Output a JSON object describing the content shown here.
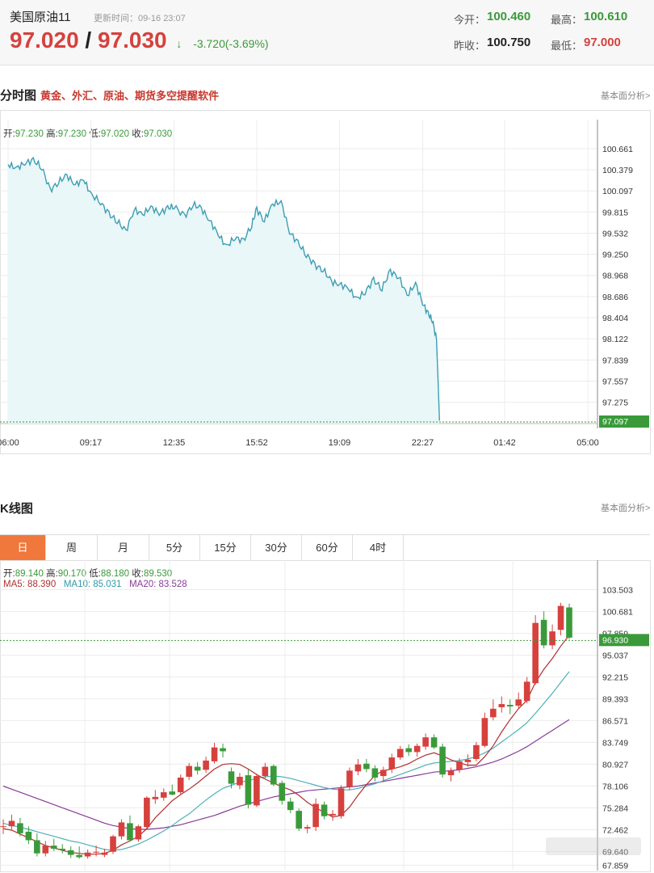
{
  "header": {
    "title": "美国原油11",
    "update_time": "更新时间：09-16 23:07",
    "bid": "97.020",
    "separator": "/",
    "ask": "97.030",
    "arrow": "↓",
    "change": "-3.720(-3.69%)",
    "open_label": "今开：",
    "open_value": "100.460",
    "high_label": "最高：",
    "high_value": "100.610",
    "prev_close_label": "昨收：",
    "prev_close_value": "100.750",
    "low_label": "最低：",
    "low_value": "97.000"
  },
  "intraday": {
    "section_title": "分时图",
    "section_subtitle": "黄金、外汇、原油、期货多空提醒软件",
    "link": "基本面分析>",
    "ohlc": {
      "open_label": "开:",
      "open": "97.230",
      "high_label": "高:",
      "high": "97.230",
      "low_label": "低:",
      "low": "97.020",
      "close_label": "收:",
      "close": "97.030"
    },
    "price_tag": "97.097"
  },
  "kline": {
    "section_title": "K线图",
    "link": "基本面分析>",
    "tabs": [
      "日",
      "周",
      "月",
      "5分",
      "15分",
      "30分",
      "60分",
      "4时"
    ],
    "active_tab": "日",
    "ohlc": {
      "open_label": "开:",
      "open": "89.140",
      "high_label": "高:",
      "high": "90.170",
      "low_label": "低:",
      "low": "88.180",
      "close_label": "收:",
      "close": "89.530"
    },
    "ma": {
      "ma5_label": "MA5:",
      "ma5": "88.390",
      "ma10_label": "MA10:",
      "ma10": "85.031",
      "ma20_label": "MA20:",
      "ma20": "83.528"
    },
    "price_tag": "96.930"
  },
  "colors": {
    "up": "#d6413d",
    "down": "#3a9a3a",
    "line": "#3d9db2",
    "fill": "#e9f7f8",
    "ma5": "#b03030",
    "ma10": "#4fb0b8",
    "ma20": "#8a3a9a",
    "tab_active": "#f0783c"
  },
  "chart_data": [
    {
      "type": "line",
      "title": "分时图",
      "xlabel": "",
      "ylabel": "",
      "x_ticks": [
        "06:00",
        "09:17",
        "12:35",
        "15:52",
        "19:09",
        "22:27",
        "01:42",
        "05:00"
      ],
      "y_ticks": [
        "100.661",
        "100.379",
        "100.097",
        "99.815",
        "99.532",
        "99.250",
        "98.968",
        "98.686",
        "98.404",
        "98.122",
        "97.839",
        "97.557",
        "97.275",
        "97.097"
      ],
      "ylim": [
        96.99,
        100.8
      ],
      "grid": true,
      "series": [
        {
          "x": [
            "06:00",
            "06:20",
            "06:40",
            "07:00",
            "07:20",
            "07:40",
            "08:00",
            "08:20",
            "08:40",
            "09:00",
            "09:17",
            "09:40",
            "10:00",
            "10:20",
            "10:40",
            "11:00",
            "11:20",
            "11:40",
            "12:00",
            "12:20",
            "12:35",
            "13:00",
            "13:20",
            "13:40",
            "14:00",
            "14:20",
            "14:40",
            "15:00",
            "15:20",
            "15:40",
            "15:52",
            "16:10",
            "16:30",
            "16:50",
            "17:10",
            "17:30",
            "17:50",
            "18:10",
            "18:30",
            "18:50",
            "19:09",
            "19:30",
            "19:50",
            "20:10",
            "20:30",
            "20:50",
            "21:10",
            "21:30",
            "21:50",
            "22:10",
            "22:27",
            "22:40",
            "22:50",
            "23:00",
            "23:07"
          ],
          "values": [
            100.45,
            100.4,
            100.47,
            100.5,
            100.42,
            100.1,
            100.22,
            100.3,
            100.18,
            100.25,
            100.05,
            99.95,
            99.78,
            99.7,
            99.55,
            99.85,
            99.78,
            99.88,
            99.8,
            99.86,
            99.9,
            99.75,
            99.92,
            99.86,
            99.7,
            99.52,
            99.35,
            99.48,
            99.42,
            99.65,
            99.85,
            99.7,
            99.92,
            99.95,
            99.55,
            99.4,
            99.25,
            99.1,
            99.05,
            98.88,
            98.85,
            98.8,
            98.65,
            98.75,
            98.9,
            98.8,
            99.02,
            98.95,
            98.7,
            98.86,
            98.6,
            98.45,
            98.38,
            98.1,
            97.03
          ]
        }
      ]
    },
    {
      "type": "candlestick",
      "title": "K线图",
      "xlabel": "",
      "ylabel": "",
      "y_ticks": [
        "103.503",
        "100.681",
        "97.859",
        "95.037",
        "92.215",
        "89.393",
        "86.571",
        "83.749",
        "80.927",
        "78.106",
        "75.284",
        "72.462",
        "69.640",
        "67.859"
      ],
      "ylim": [
        67.8,
        104.7
      ],
      "grid": true,
      "candles_ohlc": [
        [
          72.8,
          73.8,
          71.9,
          72.9
        ],
        [
          72.9,
          74.4,
          72.5,
          73.6
        ],
        [
          73.3,
          74.0,
          71.6,
          72.0
        ],
        [
          72.2,
          72.9,
          70.6,
          71.1
        ],
        [
          71.1,
          72.0,
          69.0,
          69.4
        ],
        [
          69.4,
          71.0,
          69.0,
          70.4
        ],
        [
          70.4,
          71.3,
          69.7,
          70.0
        ],
        [
          70.0,
          70.6,
          69.4,
          69.8
        ],
        [
          69.8,
          70.3,
          68.8,
          69.2
        ],
        [
          69.2,
          70.3,
          68.7,
          68.9
        ],
        [
          69.0,
          69.9,
          68.7,
          69.5
        ],
        [
          69.5,
          70.4,
          69.0,
          69.6
        ],
        [
          69.2,
          70.0,
          68.9,
          69.5
        ],
        [
          69.6,
          71.8,
          69.3,
          71.6
        ],
        [
          71.6,
          73.8,
          71.2,
          73.4
        ],
        [
          73.3,
          74.3,
          70.9,
          71.1
        ],
        [
          71.2,
          73.1,
          70.9,
          72.9
        ],
        [
          72.8,
          76.8,
          72.6,
          76.6
        ],
        [
          76.4,
          77.6,
          75.8,
          76.7
        ],
        [
          76.6,
          77.8,
          76.2,
          77.3
        ],
        [
          77.4,
          78.3,
          76.9,
          77.0
        ],
        [
          77.3,
          79.6,
          77.0,
          79.2
        ],
        [
          79.3,
          81.1,
          78.9,
          80.7
        ],
        [
          80.6,
          81.2,
          79.6,
          80.1
        ],
        [
          80.2,
          81.9,
          79.8,
          81.4
        ],
        [
          81.3,
          83.7,
          81.0,
          83.1
        ],
        [
          83.0,
          83.6,
          81.8,
          82.6
        ],
        [
          80.0,
          80.5,
          77.8,
          78.4
        ],
        [
          78.2,
          79.8,
          77.7,
          79.3
        ],
        [
          79.5,
          80.3,
          75.2,
          75.7
        ],
        [
          75.6,
          79.7,
          75.4,
          79.4
        ],
        [
          79.4,
          81.1,
          79.1,
          80.6
        ],
        [
          80.7,
          80.9,
          78.1,
          78.3
        ],
        [
          78.5,
          78.8,
          75.7,
          76.2
        ],
        [
          76.1,
          76.6,
          74.6,
          75.0
        ],
        [
          74.9,
          75.2,
          72.3,
          72.6
        ],
        [
          72.6,
          73.1,
          72.0,
          72.8
        ],
        [
          72.8,
          76.5,
          72.3,
          75.8
        ],
        [
          75.7,
          76.1,
          73.8,
          74.2
        ],
        [
          74.3,
          75.0,
          73.6,
          74.5
        ],
        [
          74.2,
          78.2,
          73.9,
          77.8
        ],
        [
          78.0,
          80.5,
          77.6,
          80.1
        ],
        [
          80.0,
          81.6,
          79.5,
          80.9
        ],
        [
          81.0,
          81.6,
          79.9,
          80.3
        ],
        [
          80.4,
          80.8,
          78.7,
          79.2
        ],
        [
          79.4,
          80.6,
          78.6,
          80.2
        ],
        [
          80.3,
          82.3,
          79.8,
          81.8
        ],
        [
          81.8,
          83.3,
          81.5,
          82.9
        ],
        [
          83.0,
          83.5,
          82.0,
          82.5
        ],
        [
          82.5,
          83.6,
          81.9,
          83.3
        ],
        [
          83.2,
          84.9,
          82.8,
          84.4
        ],
        [
          84.4,
          84.8,
          82.9,
          83.1
        ],
        [
          83.2,
          83.6,
          79.2,
          79.6
        ],
        [
          79.5,
          80.5,
          78.7,
          80.1
        ],
        [
          80.2,
          81.7,
          79.8,
          81.3
        ],
        [
          81.2,
          82.2,
          80.6,
          81.5
        ],
        [
          81.6,
          83.8,
          81.3,
          83.4
        ],
        [
          83.3,
          87.6,
          83.1,
          86.9
        ],
        [
          87.0,
          89.3,
          86.6,
          88.1
        ],
        [
          88.3,
          89.7,
          87.6,
          88.7
        ],
        [
          88.6,
          89.3,
          87.4,
          88.4
        ],
        [
          88.5,
          90.2,
          88.2,
          89.3
        ],
        [
          89.1,
          92.2,
          88.8,
          91.6
        ],
        [
          91.4,
          100.2,
          91.2,
          99.2
        ],
        [
          99.6,
          100.7,
          95.9,
          96.3
        ],
        [
          96.3,
          99.0,
          95.8,
          98.1
        ],
        [
          98.3,
          101.8,
          97.6,
          101.4
        ],
        [
          101.2,
          101.7,
          97.1,
          97.3
        ]
      ],
      "ma5": [
        72.6,
        72.4,
        71.9,
        71.4,
        70.9,
        70.4,
        70.1,
        69.8,
        69.5,
        69.4,
        69.3,
        69.3,
        69.4,
        69.8,
        70.5,
        71.0,
        71.6,
        72.6,
        74.0,
        75.1,
        76.2,
        77.0,
        77.7,
        78.5,
        79.4,
        80.3,
        80.9,
        81.0,
        80.9,
        80.3,
        79.6,
        79.0,
        78.5,
        78.0,
        77.6,
        76.9,
        76.0,
        75.3,
        74.7,
        74.1,
        74.3,
        75.4,
        76.9,
        78.3,
        79.5,
        80.1,
        80.3,
        80.6,
        81.0,
        81.6,
        82.1,
        82.4,
        82.0,
        81.5,
        81.1,
        80.8,
        80.8,
        81.9,
        83.3,
        85.1,
        86.7,
        88.1,
        89.2,
        91.5,
        93.2,
        94.6,
        96.2,
        97.6
      ],
      "ma10": [
        73.3,
        73.0,
        72.8,
        72.5,
        72.2,
        71.9,
        71.6,
        71.3,
        71.0,
        70.8,
        70.5,
        70.2,
        69.9,
        69.8,
        69.9,
        70.2,
        70.6,
        71.1,
        71.7,
        72.3,
        73.0,
        73.8,
        74.5,
        75.4,
        76.3,
        77.1,
        77.8,
        78.2,
        78.6,
        78.8,
        79.1,
        79.3,
        79.4,
        79.3,
        79.1,
        78.8,
        78.5,
        78.2,
        77.9,
        77.7,
        77.6,
        77.6,
        77.8,
        78.1,
        78.4,
        78.8,
        79.2,
        79.6,
        80.0,
        80.4,
        80.8,
        81.1,
        81.2,
        81.3,
        81.4,
        81.6,
        81.9,
        82.4,
        83.0,
        83.8,
        84.6,
        85.4,
        86.3,
        87.5,
        88.8,
        90.1,
        91.5,
        92.9
      ],
      "ma20": [
        78.1,
        77.7,
        77.3,
        76.9,
        76.5,
        76.1,
        75.7,
        75.3,
        74.9,
        74.5,
        74.1,
        73.7,
        73.3,
        73.0,
        72.8,
        72.6,
        72.5,
        72.5,
        72.6,
        72.7,
        72.9,
        73.1,
        73.4,
        73.7,
        74.0,
        74.3,
        74.7,
        75.1,
        75.5,
        75.8,
        76.1,
        76.4,
        76.7,
        76.9,
        77.1,
        77.3,
        77.5,
        77.6,
        77.7,
        77.8,
        77.9,
        78.0,
        78.1,
        78.3,
        78.5,
        78.7,
        78.9,
        79.1,
        79.3,
        79.5,
        79.7,
        79.9,
        80.0,
        80.1,
        80.2,
        80.4,
        80.6,
        80.9,
        81.2,
        81.6,
        82.1,
        82.6,
        83.2,
        83.9,
        84.6,
        85.3,
        86.0,
        86.7
      ]
    }
  ]
}
